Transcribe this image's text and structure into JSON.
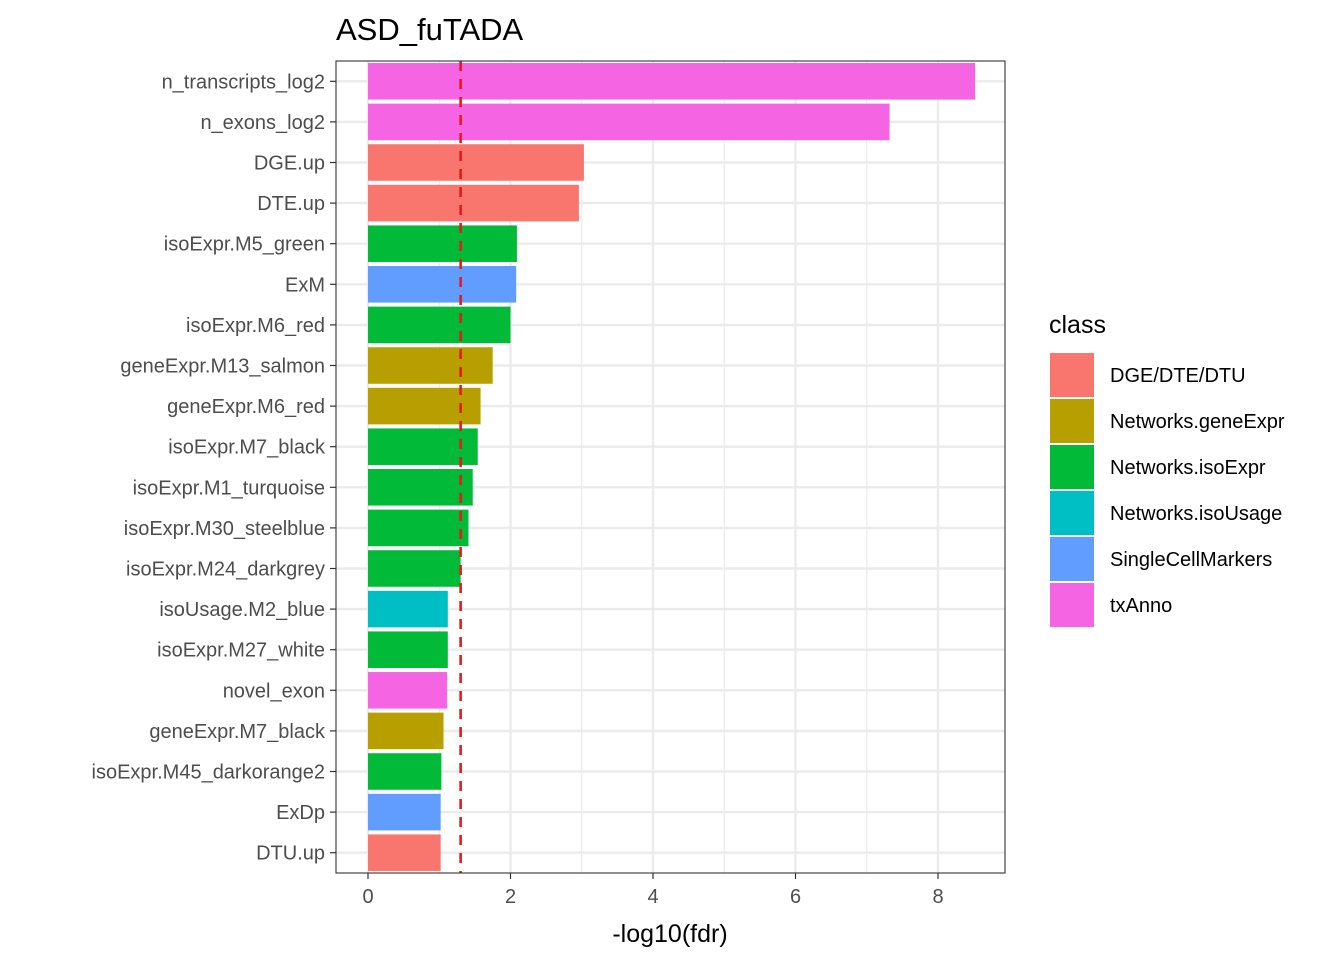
{
  "chart_data": {
    "type": "bar",
    "orientation": "horizontal",
    "title": "ASD_fuTADA",
    "xlabel": "-log10(fdr)",
    "ylabel": "",
    "xlim": [
      -0.5,
      8.95
    ],
    "xticks": [
      0,
      2,
      4,
      6,
      8
    ],
    "xtick_labels": [
      "0",
      "2",
      "4",
      "6",
      "8"
    ],
    "threshold": {
      "value": 1.3,
      "color": "#e41a1c",
      "style": "dashed"
    },
    "grid": true,
    "legend": {
      "title": "class",
      "position": "right",
      "entries": [
        {
          "label": "DGE/DTE/DTU",
          "color": "#F8766D"
        },
        {
          "label": "Networks.geneExpr",
          "color": "#B79F00"
        },
        {
          "label": "Networks.isoExpr",
          "color": "#00BA38"
        },
        {
          "label": "Networks.isoUsage",
          "color": "#00BFC4"
        },
        {
          "label": "SingleCellMarkers",
          "color": "#619CFF"
        },
        {
          "label": "txAnno",
          "color": "#F564E3"
        }
      ]
    },
    "categories": [
      "n_transcripts_log2",
      "n_exons_log2",
      "DGE.up",
      "DTE.up",
      "isoExpr.M5_green",
      "ExM",
      "isoExpr.M6_red",
      "geneExpr.M13_salmon",
      "geneExpr.M6_red",
      "isoExpr.M7_black",
      "isoExpr.M1_turquoise",
      "isoExpr.M30_steelblue",
      "isoExpr.M24_darkgrey",
      "isoUsage.M2_blue",
      "isoExpr.M27_white",
      "novel_exon",
      "geneExpr.M7_black",
      "isoExpr.M45_darkorange2",
      "ExDp",
      "DTU.up"
    ],
    "values": [
      8.52,
      7.32,
      3.03,
      2.96,
      2.09,
      2.08,
      2.0,
      1.75,
      1.58,
      1.54,
      1.47,
      1.41,
      1.3,
      1.12,
      1.12,
      1.11,
      1.06,
      1.03,
      1.02,
      1.02
    ],
    "classes": [
      "txAnno",
      "txAnno",
      "DGE/DTE/DTU",
      "DGE/DTE/DTU",
      "Networks.isoExpr",
      "SingleCellMarkers",
      "Networks.isoExpr",
      "Networks.geneExpr",
      "Networks.geneExpr",
      "Networks.isoExpr",
      "Networks.isoExpr",
      "Networks.isoExpr",
      "Networks.isoExpr",
      "Networks.isoUsage",
      "Networks.isoExpr",
      "txAnno",
      "Networks.geneExpr",
      "Networks.isoExpr",
      "SingleCellMarkers",
      "DGE/DTE/DTU"
    ]
  }
}
